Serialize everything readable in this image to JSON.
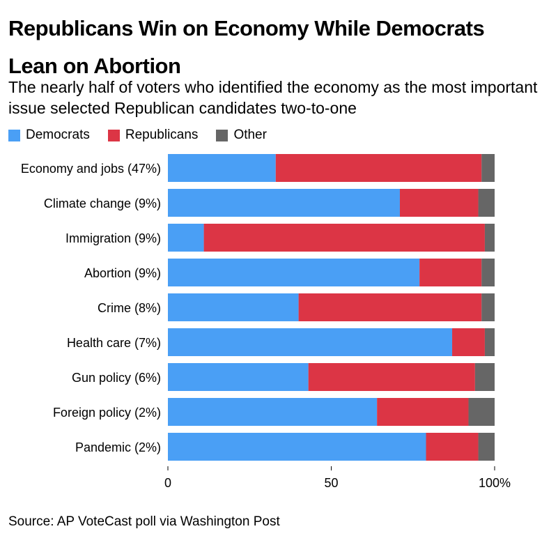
{
  "title": "Republicans Win on Economy While Democrats Lean on Abortion",
  "subtitle": "The nearly half of voters who identified the economy as the most important issue selected Republican candidates two-to-one",
  "source": "Source: AP VoteCast poll via Washington Post",
  "colors": {
    "Democrats": "#4a9ff5",
    "Republicans": "#dc3545",
    "Other": "#666666"
  },
  "chart_data": {
    "type": "bar",
    "orientation": "horizontal",
    "stacked": true,
    "categories": [
      "Economy and jobs (47%)",
      "Climate change (9%)",
      "Immigration (9%)",
      "Abortion (9%)",
      "Crime (8%)",
      "Health care (7%)",
      "Gun policy (6%)",
      "Foreign policy (2%)",
      "Pandemic (2%)"
    ],
    "series": [
      {
        "name": "Democrats",
        "values": [
          33,
          71,
          11,
          77,
          40,
          87,
          43,
          64,
          79
        ]
      },
      {
        "name": "Republicans",
        "values": [
          63,
          24,
          86,
          19,
          56,
          10,
          51,
          28,
          16
        ]
      },
      {
        "name": "Other",
        "values": [
          4,
          5,
          3,
          4,
          4,
          3,
          6,
          8,
          5
        ]
      }
    ],
    "xlim": [
      0,
      100
    ],
    "xticks": [
      "0",
      "50",
      "100%"
    ],
    "legend": "top-left",
    "grid": false
  }
}
